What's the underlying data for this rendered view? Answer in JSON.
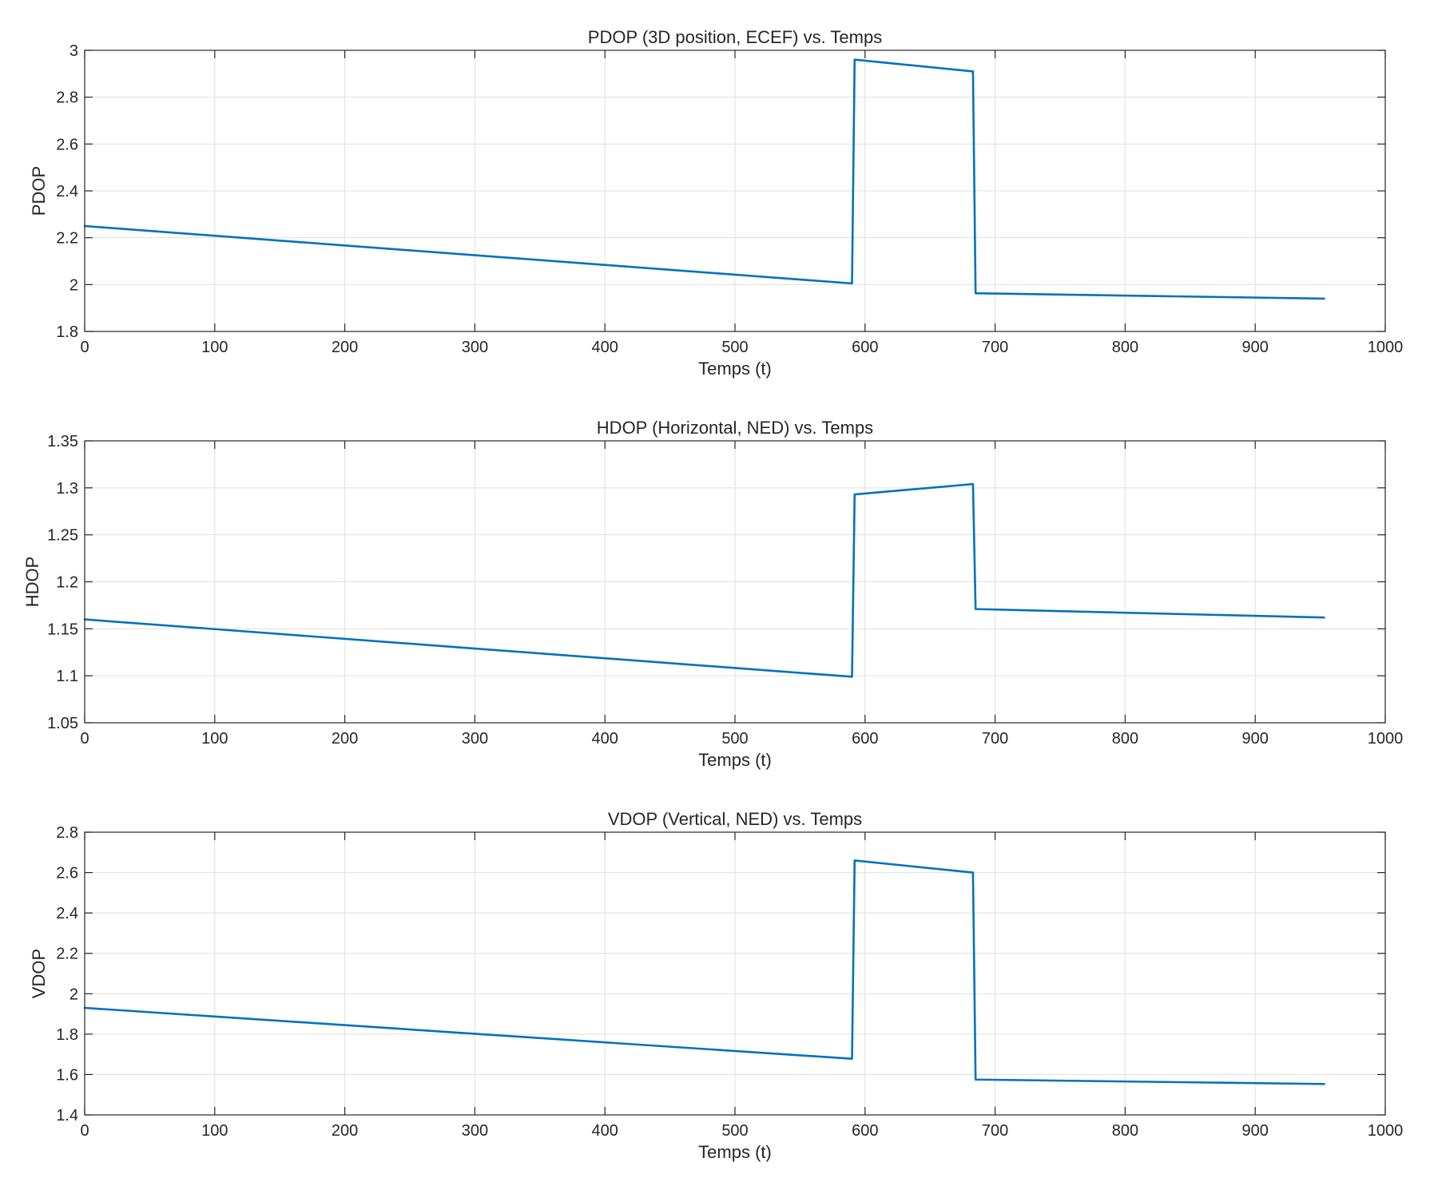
{
  "chart_data": [
    {
      "type": "line",
      "title": "PDOP (3D position, ECEF) vs. Temps",
      "xlabel": "Temps (t)",
      "ylabel": "PDOP",
      "xlim": [
        0,
        1000
      ],
      "ylim": [
        1.8,
        3
      ],
      "xticks": [
        0,
        100,
        200,
        300,
        400,
        500,
        600,
        700,
        800,
        900,
        1000
      ],
      "xtick_labels": [
        "0",
        "100",
        "200",
        "300",
        "400",
        "500",
        "600",
        "700",
        "800",
        "900",
        "1000"
      ],
      "yticks": [
        1.8,
        2,
        2.2,
        2.4,
        2.6,
        2.8,
        3
      ],
      "ytick_labels": [
        "1.8",
        "2",
        "2.2",
        "2.4",
        "2.6",
        "2.8",
        "3"
      ],
      "grid": true,
      "color": "#0072BD",
      "series": [
        {
          "x": [
            0,
            590,
            592,
            683,
            685,
            953
          ],
          "y": [
            2.25,
            2.005,
            2.96,
            2.91,
            1.963,
            1.94
          ]
        }
      ]
    },
    {
      "type": "line",
      "title": "HDOP (Horizontal, NED) vs. Temps",
      "xlabel": "Temps (t)",
      "ylabel": "HDOP",
      "xlim": [
        0,
        1000
      ],
      "ylim": [
        1.05,
        1.35
      ],
      "xticks": [
        0,
        100,
        200,
        300,
        400,
        500,
        600,
        700,
        800,
        900,
        1000
      ],
      "xtick_labels": [
        "0",
        "100",
        "200",
        "300",
        "400",
        "500",
        "600",
        "700",
        "800",
        "900",
        "1000"
      ],
      "yticks": [
        1.05,
        1.1,
        1.15,
        1.2,
        1.25,
        1.3,
        1.35
      ],
      "ytick_labels": [
        "1.05",
        "1.1",
        "1.15",
        "1.2",
        "1.25",
        "1.3",
        "1.35"
      ],
      "grid": true,
      "color": "#0072BD",
      "series": [
        {
          "x": [
            0,
            590,
            592,
            683,
            685,
            953
          ],
          "y": [
            1.16,
            1.099,
            1.293,
            1.304,
            1.171,
            1.162
          ]
        }
      ]
    },
    {
      "type": "line",
      "title": "VDOP (Vertical, NED) vs. Temps",
      "xlabel": "Temps (t)",
      "ylabel": "VDOP",
      "xlim": [
        0,
        1000
      ],
      "ylim": [
        1.4,
        2.8
      ],
      "xticks": [
        0,
        100,
        200,
        300,
        400,
        500,
        600,
        700,
        800,
        900,
        1000
      ],
      "xtick_labels": [
        "0",
        "100",
        "200",
        "300",
        "400",
        "500",
        "600",
        "700",
        "800",
        "900",
        "1000"
      ],
      "yticks": [
        1.4,
        1.6,
        1.8,
        2,
        2.2,
        2.4,
        2.6,
        2.8
      ],
      "ytick_labels": [
        "1.4",
        "1.6",
        "1.8",
        "2",
        "2.2",
        "2.4",
        "2.6",
        "2.8"
      ],
      "grid": true,
      "color": "#0072BD",
      "series": [
        {
          "x": [
            0,
            590,
            592,
            683,
            685,
            953
          ],
          "y": [
            1.93,
            1.678,
            2.66,
            2.6,
            1.575,
            1.553
          ]
        }
      ]
    }
  ]
}
